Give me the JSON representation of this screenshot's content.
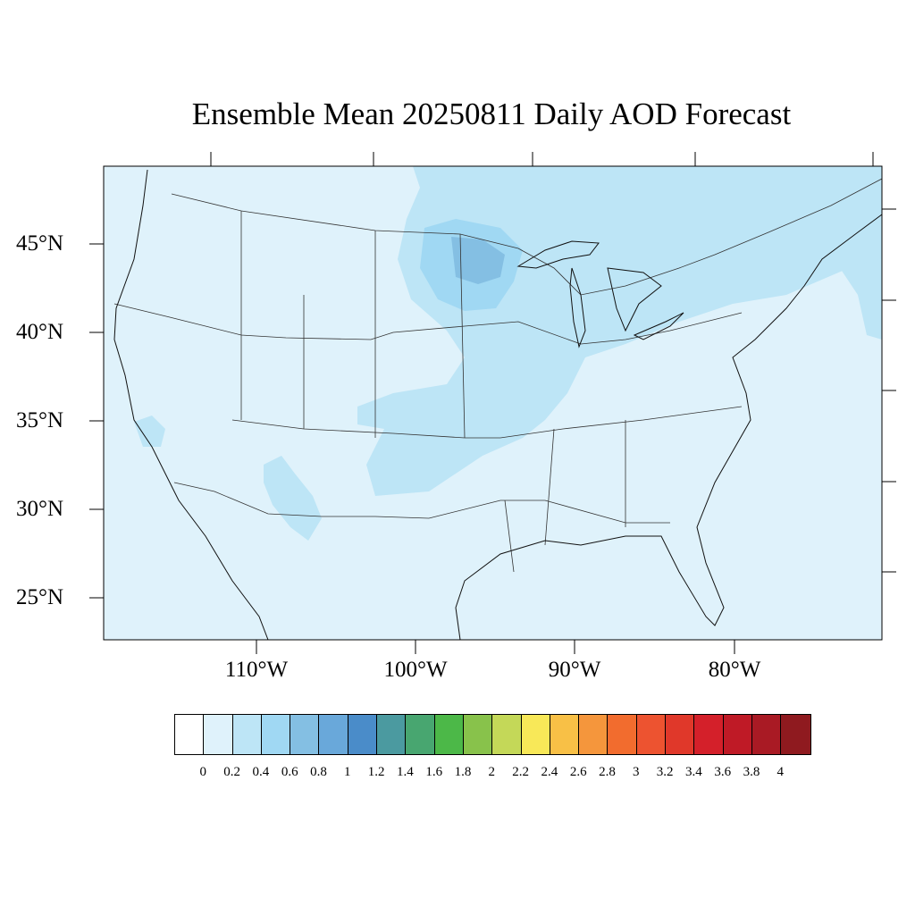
{
  "title": "Ensemble Mean 20250811 Daily AOD Forecast",
  "map": {
    "lon_range": [
      -119.5,
      -70.7
    ],
    "lat_range": [
      22.6,
      49.4
    ],
    "latitude_labels": [
      "45°N",
      "40°N",
      "35°N",
      "30°N",
      "25°N"
    ],
    "longitude_labels": [
      "110°W",
      "100°W",
      "90°W",
      "80°W"
    ],
    "background_color": "#dff2fb"
  },
  "colorbar": {
    "colors": [
      "#ffffff",
      "#dff2fb",
      "#bde5f6",
      "#a0d8f3",
      "#84bfe3",
      "#69a8da",
      "#4a8cc9",
      "#4b9aa0",
      "#48a670",
      "#4cb848",
      "#88c24b",
      "#c4d858",
      "#f8e858",
      "#f8c046",
      "#f5963c",
      "#f26c2e",
      "#ed5330",
      "#e0382a",
      "#d4202a",
      "#bf1a26",
      "#a91a24",
      "#8f1a1f"
    ],
    "labels": [
      "0",
      "0.2",
      "0.4",
      "0.6",
      "0.8",
      "1",
      "1.2",
      "1.4",
      "1.6",
      "1.8",
      "2",
      "2.2",
      "2.4",
      "2.6",
      "2.8",
      "3",
      "3.2",
      "3.4",
      "3.6",
      "3.8",
      "4"
    ]
  }
}
